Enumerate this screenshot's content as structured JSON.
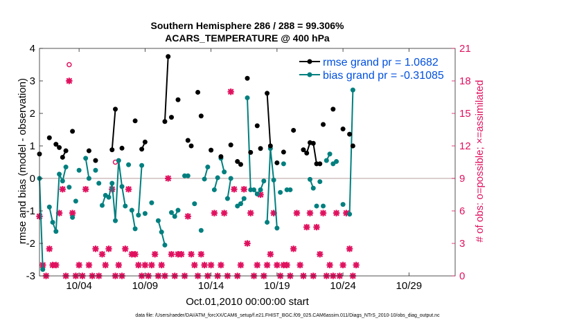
{
  "chart_data": {
    "type": "line",
    "title_line1": "Southern Hemisphere 286 / 288 = 99.306%",
    "title_line2": "ACARS_TEMPERATURE @ 400 hPa",
    "xlabel": "Oct.01,2010 00:00:00 start",
    "ylabel_left": "rmse and bias (model - observation)",
    "ylabel_right": "# of obs: o=possible; ×=assimilated",
    "footer": "data file: /Users/raeder/DAI/ATM_forcXX/CAM6_setup/f.e21.FHIST_BGC.f09_025.CAM6assim.011/Diags_NTrS_2010-10/obs_diag_output.nc",
    "xlim": [
      1,
      32.5
    ],
    "ylim_left": [
      -3,
      4
    ],
    "ylim_right": [
      0,
      21
    ],
    "x_ticks": [
      4,
      9,
      14,
      19,
      24,
      29
    ],
    "x_tick_labels": [
      "10/04",
      "10/09",
      "10/14",
      "10/19",
      "10/24",
      "10/29"
    ],
    "y_ticks_left": [
      -3,
      -2,
      -1,
      0,
      1,
      2,
      3,
      4
    ],
    "y_tick_labels_left": [
      "-3",
      "-2",
      "-1",
      "0",
      "1",
      "2",
      "3",
      "4"
    ],
    "y_ticks_right": [
      0,
      3,
      6,
      9,
      12,
      15,
      18,
      21
    ],
    "y_tick_labels_right": [
      "0",
      "3",
      "6",
      "9",
      "12",
      "15",
      "18",
      "21"
    ],
    "legend": [
      "rmse grand pr = 1.0682",
      "bias grand pr = -0.31085"
    ],
    "colors": {
      "rmse": "#000000",
      "bias": "#007f7f",
      "obs": "#e0115f",
      "zero_line": "#c8b0b0"
    },
    "rmse_segments": [
      [
        [
          1.0,
          0.75
        ]
      ],
      [
        [
          1.75,
          1.25
        ]
      ],
      [
        [
          2.25,
          1.05
        ],
        [
          2.5,
          0.95
        ]
      ],
      [
        [
          2.75,
          0.65
        ],
        [
          3.0,
          0.85
        ]
      ],
      [
        [
          3.5,
          1.45
        ]
      ],
      [
        [
          4.75,
          0.85
        ]
      ],
      [
        [
          5.25,
          0.55
        ]
      ],
      [
        [
          6.5,
          0.88
        ],
        [
          6.75,
          2.13
        ]
      ],
      [
        [
          7.25,
          0.93
        ]
      ],
      [
        [
          8.25,
          1.77
        ]
      ],
      [
        [
          8.75,
          0.9
        ],
        [
          9.0,
          1.12
        ]
      ],
      [
        [
          10.5,
          1.75
        ],
        [
          10.75,
          3.75
        ]
      ],
      [
        [
          11.0,
          1.88
        ]
      ],
      [
        [
          11.5,
          2.42
        ]
      ],
      [
        [
          12.25,
          1.17
        ]
      ],
      [
        [
          12.5,
          1.0
        ]
      ],
      [
        [
          13.0,
          2.65
        ]
      ],
      [
        [
          13.25,
          1.92
        ]
      ],
      [
        [
          14.0,
          0.87
        ]
      ],
      [
        [
          14.75,
          0.67
        ]
      ],
      [
        [
          15.5,
          1.03
        ]
      ],
      [
        [
          16.0,
          0.52
        ]
      ],
      [
        [
          16.25,
          0.43
        ]
      ],
      [
        [
          16.75,
          3.08
        ]
      ],
      [
        [
          17.0,
          0.8
        ]
      ],
      [
        [
          17.5,
          1.62
        ]
      ],
      [
        [
          17.75,
          0.92
        ]
      ],
      [
        [
          18.25,
          2.62
        ],
        [
          18.5,
          1.0
        ]
      ],
      [
        [
          19.0,
          0.48
        ]
      ],
      [
        [
          19.5,
          0.81
        ]
      ],
      [
        [
          20.25,
          1.48
        ]
      ],
      [
        [
          21.0,
          0.88
        ],
        [
          21.25,
          0.78
        ],
        [
          21.5,
          1.1
        ],
        [
          21.75,
          1.08
        ],
        [
          22.0,
          0.45
        ],
        [
          22.25,
          0.45
        ]
      ],
      [
        [
          22.5,
          1.66
        ]
      ],
      [
        [
          23.25,
          2.13
        ]
      ],
      [
        [
          24.0,
          1.52
        ]
      ],
      [
        [
          24.5,
          1.36
        ]
      ],
      [
        [
          24.75,
          1.0
        ]
      ]
    ],
    "bias_segments": [
      [
        [
          1.0,
          0.0
        ],
        [
          1.25,
          -2.8
        ]
      ],
      [
        [
          1.75,
          -0.88
        ],
        [
          2.0,
          -1.35
        ],
        [
          2.25,
          -1.63
        ],
        [
          2.5,
          0.13
        ],
        [
          2.75,
          -0.08
        ],
        [
          3.0,
          0.35
        ]
      ],
      [
        [
          3.25,
          -0.27
        ]
      ],
      [
        [
          3.5,
          -1.2
        ]
      ],
      [
        [
          3.75,
          -0.7
        ]
      ],
      [
        [
          4.0,
          0.25
        ]
      ],
      [
        [
          4.5,
          0.62
        ],
        [
          4.75,
          0.0
        ]
      ],
      [
        [
          5.25,
          0.25
        ]
      ],
      [
        [
          5.5,
          -0.15
        ]
      ],
      [
        [
          5.75,
          -0.83
        ],
        [
          6.0,
          -0.52
        ]
      ],
      [
        [
          6.25,
          -0.58
        ],
        [
          6.5,
          -0.15
        ],
        [
          6.75,
          -1.3
        ],
        [
          7.0,
          0.55
        ],
        [
          7.25,
          -0.25
        ],
        [
          7.5,
          -0.85
        ]
      ],
      [
        [
          7.75,
          0.42
        ]
      ],
      [
        [
          8.0,
          -0.98
        ],
        [
          8.25,
          -1.55
        ]
      ],
      [
        [
          8.5,
          -1.13
        ],
        [
          8.75,
          0.4
        ]
      ],
      [
        [
          9.0,
          -1.08
        ]
      ],
      [
        [
          9.5,
          -0.75
        ]
      ],
      [
        [
          10.0,
          -1.3
        ],
        [
          10.25,
          -1.65
        ],
        [
          10.5,
          -2.05
        ]
      ],
      [
        [
          11.0,
          -1.05
        ],
        [
          11.25,
          -1.17
        ],
        [
          11.5,
          -0.98
        ]
      ],
      [
        [
          12.0,
          0.08
        ]
      ],
      [
        [
          12.25,
          0.08
        ]
      ],
      [
        [
          12.75,
          -0.78
        ]
      ],
      [
        [
          13.25,
          -1.6
        ]
      ],
      [
        [
          13.5,
          -0.02
        ],
        [
          13.75,
          0.35
        ]
      ],
      [
        [
          14.25,
          -0.35
        ],
        [
          14.5,
          0.02
        ]
      ],
      [
        [
          14.75,
          0.62
        ],
        [
          15.0,
          0.2
        ]
      ],
      [
        [
          15.25,
          -0.62
        ],
        [
          15.5,
          0.0
        ]
      ],
      [
        [
          16.0,
          -0.85
        ]
      ],
      [
        [
          16.25,
          -0.78
        ],
        [
          16.5,
          -0.62
        ]
      ],
      [
        [
          16.75,
          2.48
        ],
        [
          17.0,
          -0.35
        ]
      ],
      [
        [
          17.25,
          -0.35
        ],
        [
          17.5,
          -0.48
        ],
        [
          17.75,
          -0.35
        ],
        [
          18.0,
          -0.08
        ]
      ],
      [
        [
          18.25,
          -1.35
        ],
        [
          18.5,
          0.92
        ],
        [
          18.75,
          -0.05
        ],
        [
          19.0,
          -1.53
        ]
      ],
      [
        [
          19.25,
          -0.43
        ]
      ],
      [
        [
          19.5,
          0.45
        ]
      ],
      [
        [
          19.75,
          -0.35
        ],
        [
          20.0,
          -0.35
        ]
      ],
      [
        [
          21.5,
          -0.03
        ],
        [
          21.75,
          -0.3
        ]
      ],
      [
        [
          22.0,
          -0.85
        ]
      ],
      [
        [
          22.25,
          -0.1
        ]
      ],
      [
        [
          22.5,
          -0.85
        ]
      ],
      [
        [
          22.75,
          0.55
        ],
        [
          23.0,
          0.75
        ]
      ],
      [
        [
          23.25,
          0.45
        ],
        [
          23.5,
          0.52
        ]
      ],
      [
        [
          24.0,
          -0.8
        ]
      ],
      [
        [
          24.5,
          -1.1
        ],
        [
          24.75,
          2.72
        ]
      ]
    ],
    "obs_assimilated": [
      [
        1.0,
        5.5
      ],
      [
        1.25,
        1.0
      ],
      [
        1.5,
        0
      ],
      [
        1.75,
        2.5
      ],
      [
        2.0,
        1.0
      ],
      [
        2.25,
        1.0
      ],
      [
        2.5,
        5.8
      ],
      [
        2.75,
        8.0
      ],
      [
        3.0,
        0
      ],
      [
        3.25,
        18.0
      ],
      [
        3.5,
        5.8
      ],
      [
        3.75,
        0
      ],
      [
        4.0,
        1.0
      ],
      [
        4.25,
        0
      ],
      [
        4.5,
        8.0
      ],
      [
        4.75,
        1.0
      ],
      [
        5.0,
        0
      ],
      [
        5.25,
        2.5
      ],
      [
        5.5,
        0
      ],
      [
        5.75,
        2.0
      ],
      [
        6.0,
        1.0
      ],
      [
        6.25,
        2.5
      ],
      [
        6.5,
        8.0
      ],
      [
        6.75,
        0
      ],
      [
        7.0,
        1.0
      ],
      [
        7.25,
        0
      ],
      [
        7.5,
        2.5
      ],
      [
        7.75,
        8.0
      ],
      [
        8.0,
        2.0
      ],
      [
        8.25,
        2.0
      ],
      [
        8.5,
        1.0
      ],
      [
        8.75,
        0
      ],
      [
        9.0,
        1.0
      ],
      [
        9.25,
        0
      ],
      [
        9.5,
        1.0
      ],
      [
        9.75,
        2.0
      ],
      [
        10.0,
        0
      ],
      [
        10.25,
        1.0
      ],
      [
        10.5,
        0
      ],
      [
        10.75,
        9.0
      ],
      [
        11.0,
        2.0
      ],
      [
        11.25,
        0
      ],
      [
        11.5,
        2.0
      ],
      [
        11.75,
        2.0
      ],
      [
        12.0,
        0
      ],
      [
        12.25,
        5.5
      ],
      [
        12.5,
        2.0
      ],
      [
        12.75,
        1.0
      ],
      [
        13.0,
        0
      ],
      [
        13.25,
        2.0
      ],
      [
        13.5,
        1.0
      ],
      [
        13.75,
        0
      ],
      [
        14.0,
        1.0
      ],
      [
        14.25,
        5.8
      ],
      [
        14.5,
        0
      ],
      [
        14.75,
        1.0
      ],
      [
        15.0,
        5.8
      ],
      [
        15.25,
        0
      ],
      [
        15.5,
        17.0
      ],
      [
        15.75,
        8.0
      ],
      [
        16.0,
        0
      ],
      [
        16.25,
        1.0
      ],
      [
        16.5,
        8.0
      ],
      [
        16.75,
        3.0
      ],
      [
        17.0,
        5.8
      ],
      [
        17.25,
        0
      ],
      [
        17.5,
        1.0
      ],
      [
        17.75,
        7.5
      ],
      [
        18.0,
        0
      ],
      [
        18.25,
        1.0
      ],
      [
        18.5,
        2.0
      ],
      [
        18.75,
        5.8
      ],
      [
        19.0,
        1.0
      ],
      [
        19.25,
        0
      ],
      [
        19.5,
        1.0
      ],
      [
        19.75,
        1.0
      ],
      [
        20.0,
        0
      ],
      [
        20.25,
        2.5
      ],
      [
        20.5,
        5.8
      ],
      [
        20.75,
        1.0
      ],
      [
        21.0,
        0
      ],
      [
        21.25,
        4.5
      ],
      [
        21.5,
        5.8
      ],
      [
        21.75,
        0
      ],
      [
        22.0,
        4.5
      ],
      [
        22.25,
        2.0
      ],
      [
        22.5,
        5.8
      ],
      [
        22.75,
        0
      ],
      [
        23.0,
        1.0
      ],
      [
        23.25,
        0
      ],
      [
        23.5,
        5.8
      ],
      [
        23.75,
        0
      ],
      [
        24.0,
        1.0
      ],
      [
        24.25,
        5.8
      ],
      [
        24.5,
        2.5
      ],
      [
        24.75,
        0
      ],
      [
        25.0,
        1.0
      ]
    ],
    "obs_possible": [
      [
        3.25,
        19.5
      ],
      [
        6.75,
        10.5
      ]
    ]
  }
}
